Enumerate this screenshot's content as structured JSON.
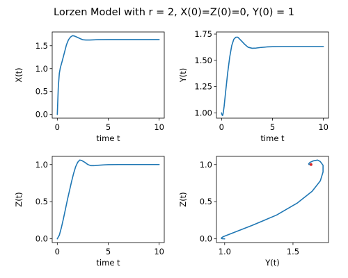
{
  "suptitle": "Lorzen Model with r = 2, X(0)=Z(0)=0, Y(0) = 1",
  "colors": {
    "line": "#1f77b4",
    "marker": "#d62728",
    "axes": "#000000",
    "background": "#ffffff"
  },
  "chart_data": [
    {
      "type": "line",
      "xlabel": "time t",
      "ylabel": "X(t)",
      "xlim": [
        -0.5,
        10.5
      ],
      "ylim": [
        -0.08,
        1.8
      ],
      "xticks": [
        0,
        5,
        10
      ],
      "yticks": [
        0.0,
        0.5,
        1.0,
        1.5
      ],
      "xtick_labels": [
        "0",
        "5",
        "10"
      ],
      "ytick_labels": [
        "0.0",
        "0.5",
        "1.0",
        "1.5"
      ],
      "series": [
        {
          "x": [
            0,
            0.05,
            0.1,
            0.2,
            0.3,
            0.5,
            0.7,
            0.9,
            1.1,
            1.3,
            1.5,
            1.7,
            1.9,
            2.2,
            2.5,
            2.8,
            3.2,
            3.6,
            4.0,
            5.0,
            6.0,
            7.0,
            8.0,
            9.0,
            10.0
          ],
          "y": [
            0.0,
            0.3,
            0.6,
            0.9,
            1.02,
            1.18,
            1.35,
            1.52,
            1.63,
            1.69,
            1.72,
            1.71,
            1.69,
            1.66,
            1.63,
            1.625,
            1.625,
            1.628,
            1.632,
            1.634,
            1.634,
            1.634,
            1.634,
            1.634,
            1.634
          ]
        }
      ]
    },
    {
      "type": "line",
      "xlabel": "time t",
      "ylabel": "Y(t)",
      "xlim": [
        -0.5,
        10.5
      ],
      "ylim": [
        0.95,
        1.77
      ],
      "xticks": [
        0,
        5,
        10
      ],
      "yticks": [
        1.0,
        1.25,
        1.5,
        1.75
      ],
      "xtick_labels": [
        "0",
        "5",
        "10"
      ],
      "ytick_labels": [
        "1.00",
        "1.25",
        "1.50",
        "1.75"
      ],
      "series": [
        {
          "x": [
            0,
            0.05,
            0.1,
            0.15,
            0.25,
            0.4,
            0.6,
            0.8,
            1.0,
            1.2,
            1.4,
            1.6,
            1.8,
            2.0,
            2.3,
            2.6,
            3.0,
            3.4,
            3.8,
            4.5,
            5.0,
            6.0,
            7.0,
            8.0,
            9.0,
            10.0
          ],
          "y": [
            1.0,
            0.98,
            0.975,
            0.99,
            1.06,
            1.2,
            1.38,
            1.53,
            1.64,
            1.7,
            1.72,
            1.72,
            1.7,
            1.68,
            1.65,
            1.625,
            1.615,
            1.617,
            1.622,
            1.628,
            1.63,
            1.632,
            1.632,
            1.632,
            1.632,
            1.632
          ]
        }
      ]
    },
    {
      "type": "line",
      "xlabel": "time t",
      "ylabel": "Z(t)",
      "xlim": [
        -0.5,
        10.5
      ],
      "ylim": [
        -0.05,
        1.11
      ],
      "xticks": [
        0,
        5,
        10
      ],
      "yticks": [
        0.0,
        0.5,
        1.0
      ],
      "xtick_labels": [
        "0",
        "5",
        "10"
      ],
      "ytick_labels": [
        "0.0",
        "0.5",
        "1.0"
      ],
      "series": [
        {
          "x": [
            0,
            0.2,
            0.4,
            0.6,
            0.8,
            1.0,
            1.2,
            1.4,
            1.6,
            1.8,
            2.0,
            2.2,
            2.4,
            2.7,
            3.0,
            3.3,
            3.6,
            4.0,
            4.5,
            5.0,
            6.0,
            7.0,
            8.0,
            9.0,
            10.0
          ],
          "y": [
            0.0,
            0.05,
            0.15,
            0.27,
            0.4,
            0.53,
            0.65,
            0.77,
            0.88,
            0.97,
            1.03,
            1.06,
            1.055,
            1.03,
            1.0,
            0.985,
            0.985,
            0.99,
            0.995,
            0.998,
            1.0,
            1.0,
            1.0,
            1.0,
            1.0
          ]
        }
      ]
    },
    {
      "type": "line",
      "xlabel": "Y(t)",
      "ylabel": "Z(t)",
      "xlim": [
        0.94,
        1.76
      ],
      "ylim": [
        -0.05,
        1.11
      ],
      "xticks": [
        1.0,
        1.5
      ],
      "yticks": [
        0.0,
        0.5,
        1.0
      ],
      "xtick_labels": [
        "1.0",
        "1.5"
      ],
      "ytick_labels": [
        "0.0",
        "0.5",
        "1.0"
      ],
      "series": [
        {
          "x": [
            1.0,
            0.98,
            0.975,
            0.99,
            1.06,
            1.2,
            1.38,
            1.53,
            1.64,
            1.7,
            1.72,
            1.72,
            1.7,
            1.68,
            1.65,
            1.625,
            1.615,
            1.617,
            1.622,
            1.63
          ],
          "y": [
            0.0,
            0.002,
            0.01,
            0.03,
            0.08,
            0.18,
            0.32,
            0.48,
            0.64,
            0.78,
            0.9,
            0.99,
            1.04,
            1.06,
            1.05,
            1.03,
            1.01,
            1.0,
            1.0,
            1.0
          ]
        }
      ],
      "marker": {
        "x": 1.632,
        "y": 1.0
      }
    }
  ]
}
